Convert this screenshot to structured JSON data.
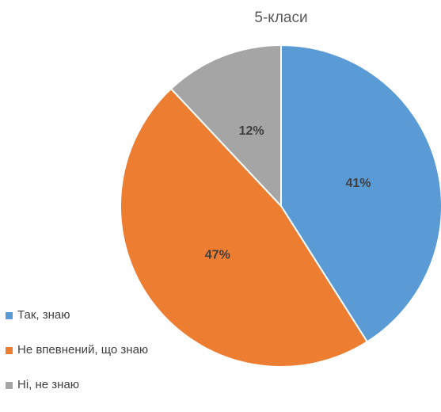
{
  "chart_data": {
    "type": "pie",
    "title": "5-класи",
    "categories": [
      "Так, знаю",
      "Не впевнений, що знаю",
      "Ні, не знаю"
    ],
    "values": [
      41,
      47,
      12
    ],
    "value_labels": [
      "41%",
      "47%",
      "12%"
    ],
    "unit": "%",
    "colors": [
      "#5b9bd5",
      "#ed7d31",
      "#a5a5a5"
    ],
    "start_angle_deg": 0,
    "direction": "clockwise",
    "legend_position": "left-bottom"
  }
}
